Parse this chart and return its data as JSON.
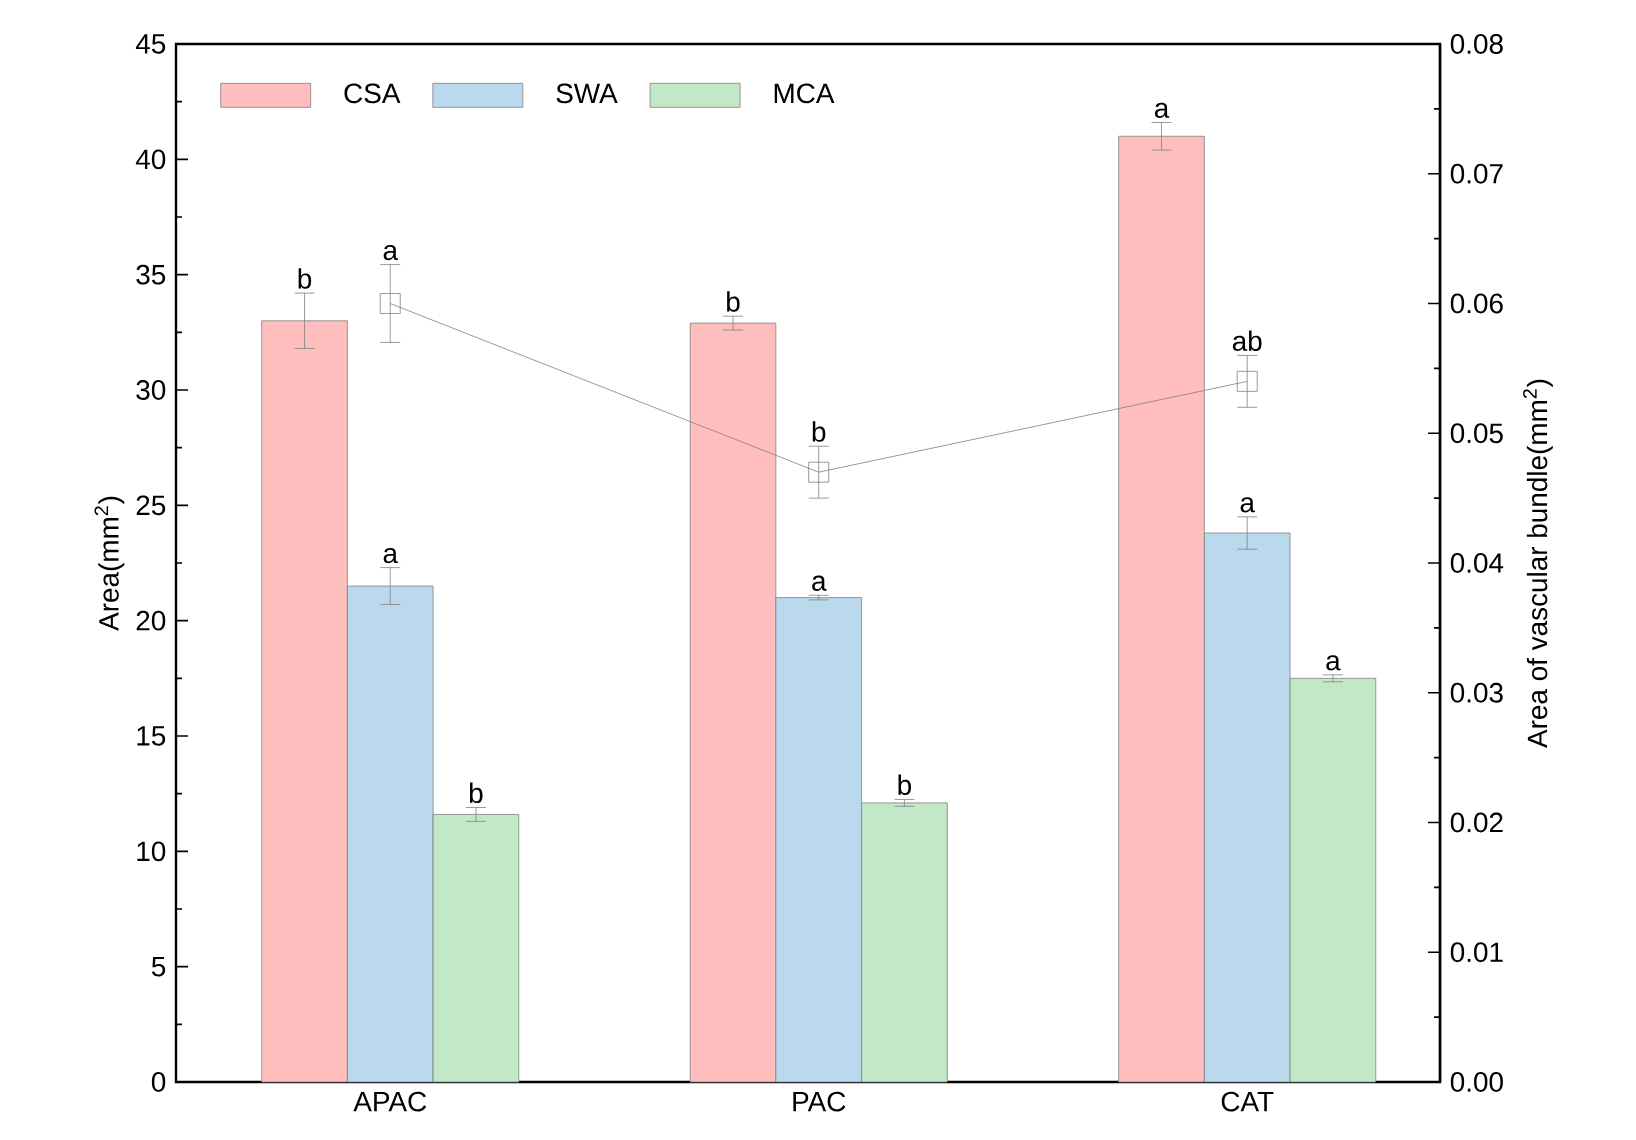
{
  "chart_data": {
    "type": "bar",
    "categories": [
      "APAC",
      "PAC",
      "CAT"
    ],
    "ylabel": "Area(mm$^{2}$)",
    "y2label": "Area of vascular bundle(mm$^{2}$)",
    "ylim": [
      0,
      45
    ],
    "yticks": [
      0,
      5,
      10,
      15,
      20,
      25,
      30,
      35,
      40,
      45
    ],
    "y2lim": [
      0,
      0.08
    ],
    "y2ticks": [
      {
        "value": 0,
        "label": "0.00"
      },
      0.01,
      0.02,
      0.03,
      0.04,
      0.05,
      0.06,
      0.07,
      0.08
    ],
    "legend": "top left",
    "grid": false,
    "series": [
      {
        "name": "CSA",
        "color": "#ffbebe",
        "values": [
          33.0,
          32.9,
          41.0
        ],
        "errors": [
          1.2,
          0.3,
          0.6
        ],
        "value_labels": [
          "b",
          "b",
          "a"
        ]
      },
      {
        "name": "SWA",
        "color": "#bad9ec",
        "values": [
          21.5,
          21.0,
          23.8
        ],
        "errors": [
          0.8,
          0.1,
          0.7
        ],
        "value_labels": [
          "a",
          "a",
          "a"
        ]
      },
      {
        "name": "MCA",
        "color": "#c2e8c8",
        "values": [
          11.6,
          12.1,
          17.5
        ],
        "errors": [
          0.3,
          0.15,
          0.15
        ],
        "value_labels": [
          "b",
          "b",
          "a"
        ]
      },
      {
        "type": "line",
        "axis": "y2",
        "color": "#808080",
        "marker": "square",
        "line_style": "solid",
        "values": [
          0.06,
          0.047,
          0.054
        ],
        "errors": [
          0.003,
          0.002,
          0.002
        ],
        "value_labels": [
          "a",
          "b",
          "ab"
        ]
      }
    ]
  }
}
